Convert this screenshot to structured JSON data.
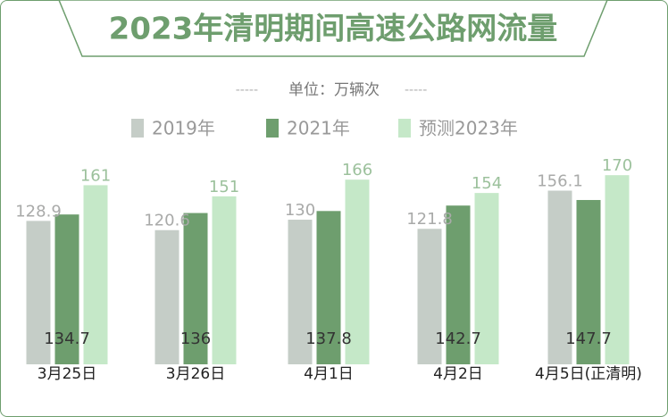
{
  "chart_data": {
    "type": "bar",
    "title": "2023年清明期间高速公路网流量",
    "subtitle": "单位：万辆次",
    "subtitle_dashes": "-----",
    "categories": [
      "3月25日",
      "3月26日",
      "4月1日",
      "4月2日",
      "4月5日(正清明)"
    ],
    "series": [
      {
        "name": "2019年",
        "color": "#c5cdc7",
        "label_color": "#a9aaa9",
        "values": [
          128.9,
          120.6,
          130,
          121.8,
          156.1
        ]
      },
      {
        "name": "2021年",
        "color": "#6e9e6e",
        "label_color": "#333333",
        "values": [
          134.7,
          136,
          137.8,
          142.7,
          147.7
        ]
      },
      {
        "name": "预测2023年",
        "color": "#c5e8c8",
        "label_color": "#9cc19c",
        "values": [
          161,
          151,
          166,
          154,
          170
        ]
      }
    ],
    "value_labels": [
      [
        "128.9",
        "120.6",
        "130",
        "121.8",
        "156.1"
      ],
      [
        "134.7",
        "136",
        "137.8",
        "142.7",
        "147.7"
      ],
      [
        "161",
        "151",
        "166",
        "154",
        "170"
      ]
    ],
    "ylim": [
      0,
      183
    ],
    "legend_position": "top",
    "grid": false,
    "xlabel": "",
    "ylabel": ""
  }
}
